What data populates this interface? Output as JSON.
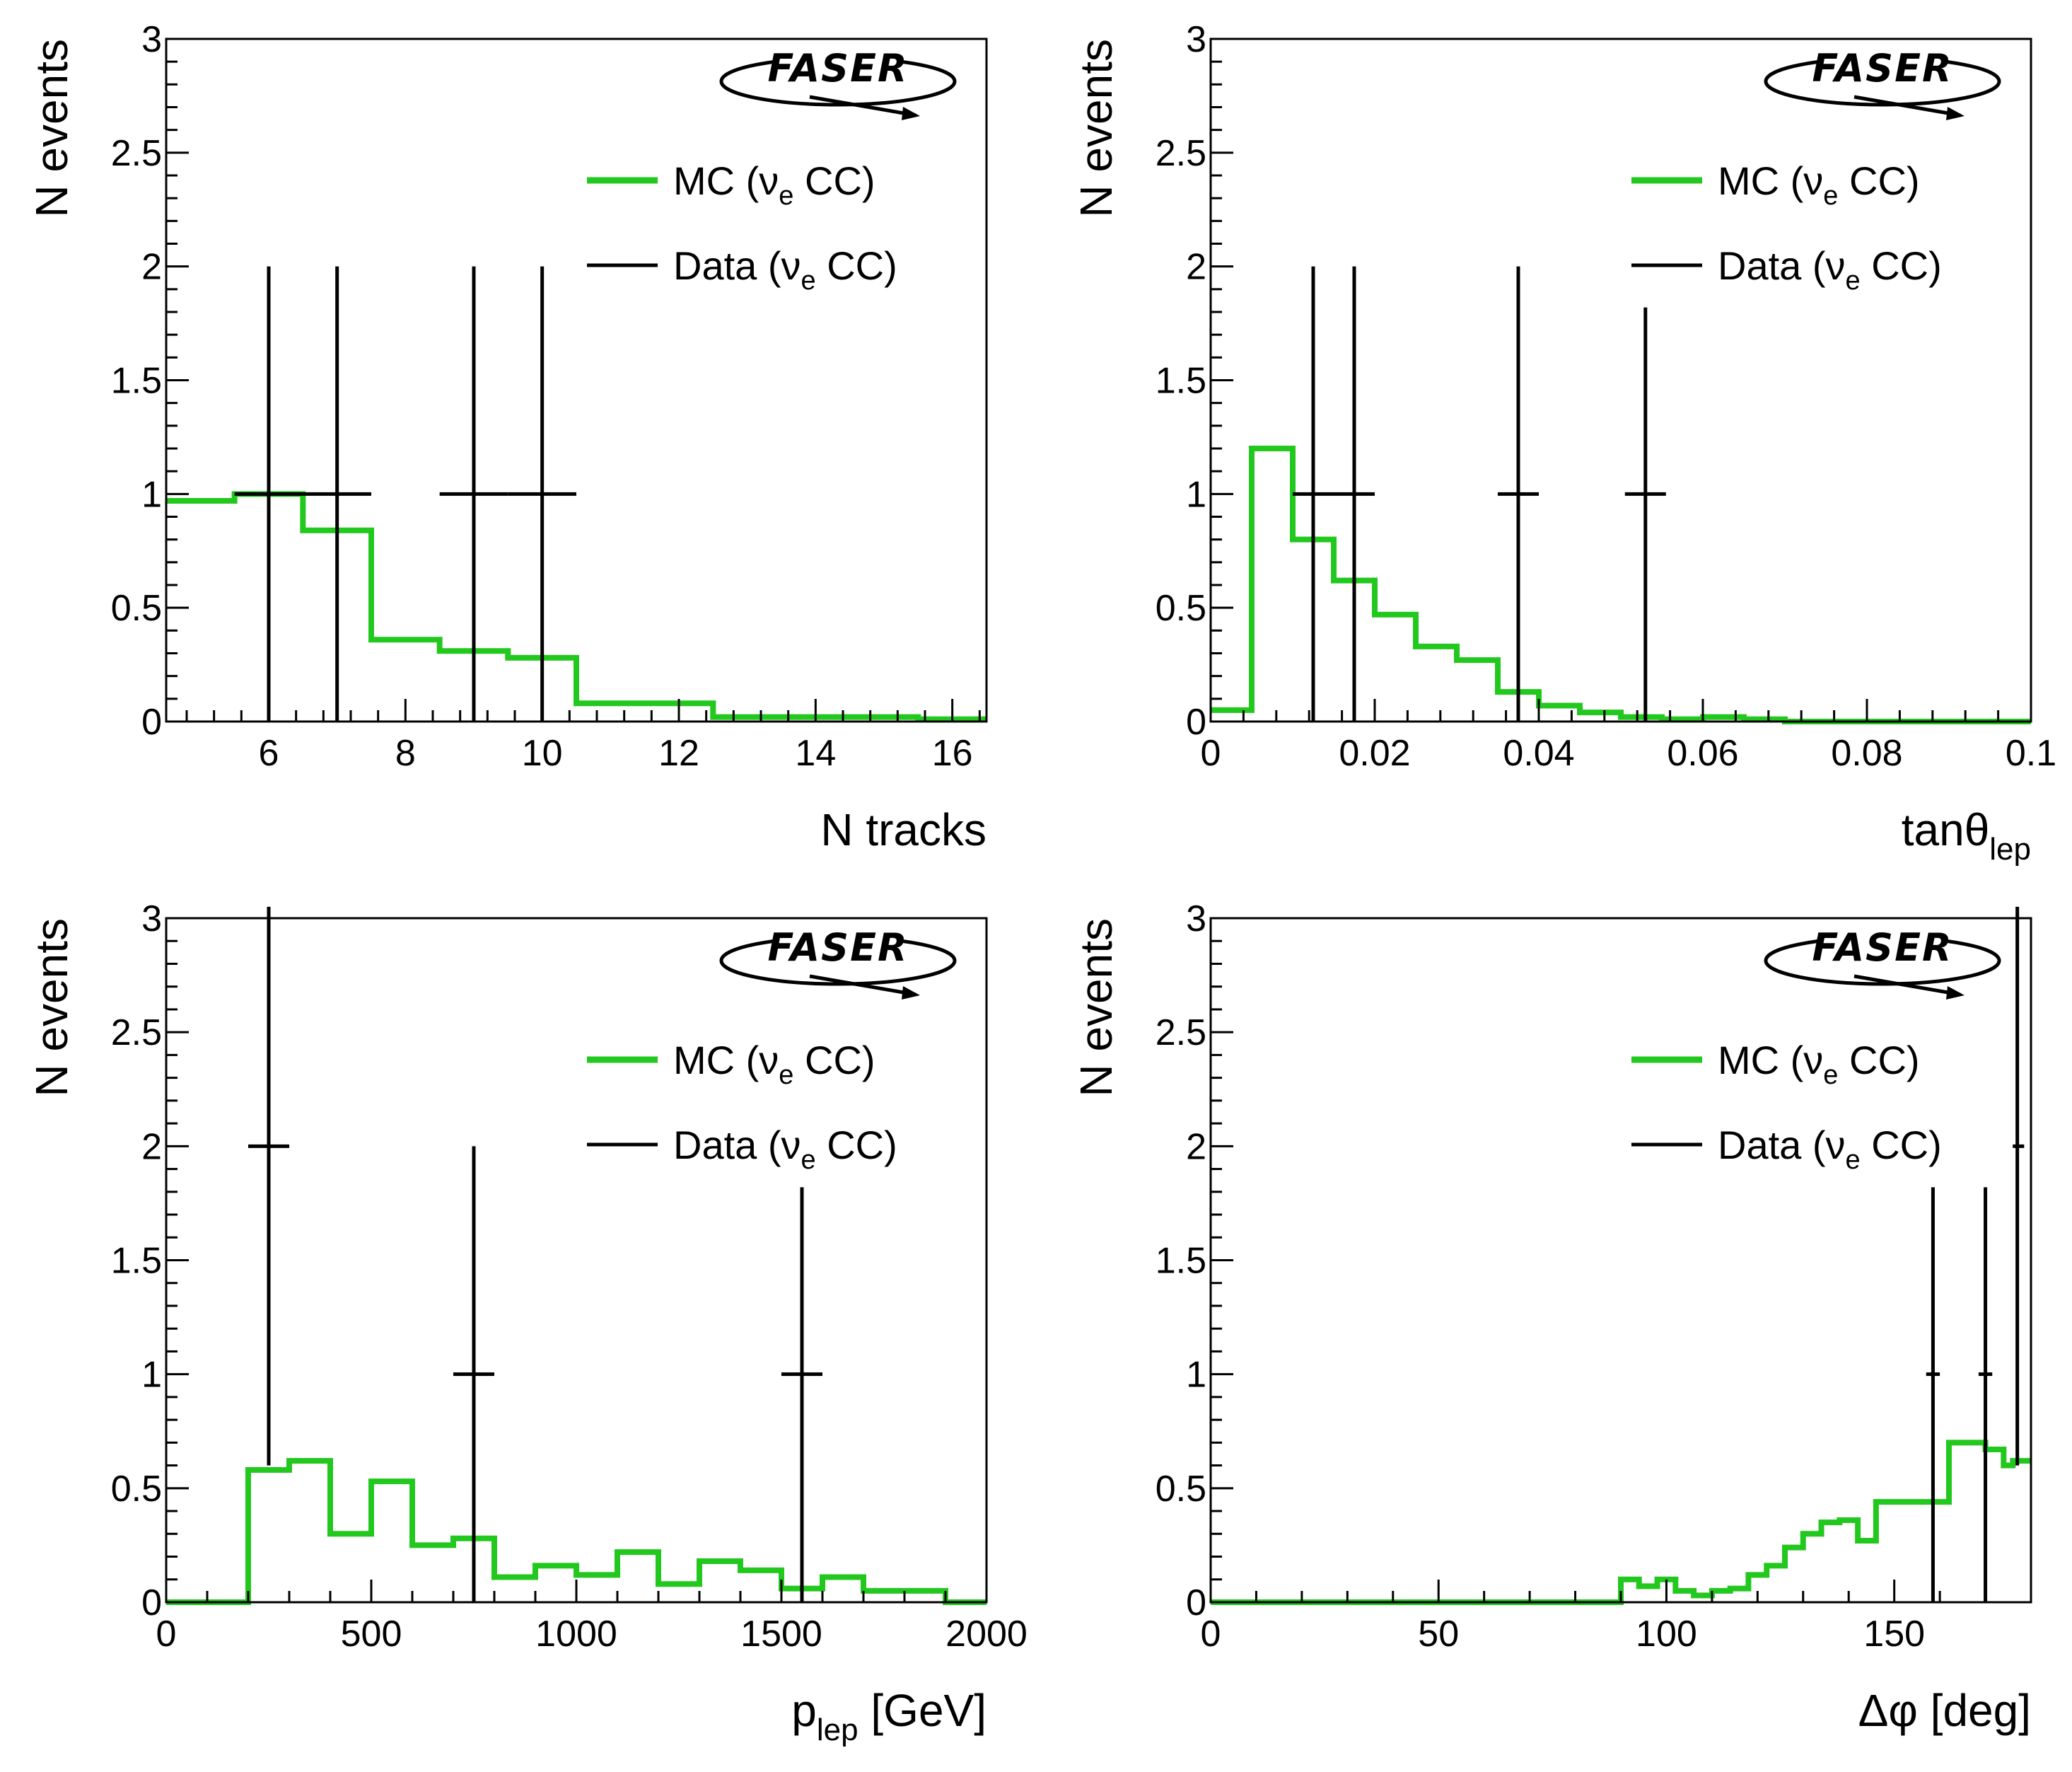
{
  "figure": {
    "logo_text": "FASER"
  },
  "colors": {
    "mc": "#22c81e",
    "data": "#000000",
    "frame": "#000000"
  },
  "chart_data": [
    {
      "type": "histogram",
      "xlabel": "N tracks",
      "xlabel_sub": "",
      "xlabel_suffix": "",
      "ylabel": "N events",
      "xlim": [
        4.5,
        16.5
      ],
      "ylim": [
        0,
        3
      ],
      "xticks": [
        6,
        8,
        10,
        12,
        14,
        16
      ],
      "xtick_labels": [
        "6",
        "8",
        "10",
        "12",
        "14",
        "16"
      ],
      "yticks": [
        0,
        0.5,
        1,
        1.5,
        2,
        2.5,
        3
      ],
      "ytick_labels": [
        "0",
        "0.5",
        "1",
        "1.5",
        "2",
        "2.5",
        "3"
      ],
      "legend": {
        "position": "top-right",
        "mc": "MC (νe CC)",
        "data": "Data (νe CC)"
      },
      "mc": {
        "name": "MC (νe CC)",
        "edges": [
          4.5,
          5.5,
          6.5,
          7.5,
          8.5,
          9.5,
          10.5,
          11.5,
          12.5,
          13.5,
          14.5,
          15.5,
          16.5
        ],
        "values": [
          0.97,
          1.0,
          0.84,
          0.36,
          0.31,
          0.28,
          0.08,
          0.08,
          0.02,
          0.02,
          0.02,
          0.01
        ]
      },
      "data": {
        "name": "Data (νe CC)",
        "points": [
          {
            "x": 6,
            "y": 1,
            "xlo": 5.5,
            "xhi": 6.5,
            "ylo": 0,
            "yhi": 2
          },
          {
            "x": 7,
            "y": 1,
            "xlo": 6.5,
            "xhi": 7.5,
            "ylo": 0,
            "yhi": 2
          },
          {
            "x": 9,
            "y": 1,
            "xlo": 8.5,
            "xhi": 9.5,
            "ylo": 0,
            "yhi": 2
          },
          {
            "x": 10,
            "y": 1,
            "xlo": 9.5,
            "xhi": 10.5,
            "ylo": 0,
            "yhi": 2
          }
        ]
      }
    },
    {
      "type": "histogram",
      "xlabel": "tanθ",
      "xlabel_sub": "lep",
      "xlabel_suffix": "",
      "ylabel": "N events",
      "xlim": [
        0,
        0.1
      ],
      "ylim": [
        0,
        3
      ],
      "xticks": [
        0,
        0.02,
        0.04,
        0.06,
        0.08,
        0.1
      ],
      "xtick_labels": [
        "0",
        "0.02",
        "0.04",
        "0.06",
        "0.08",
        "0.1"
      ],
      "yticks": [
        0,
        0.5,
        1,
        1.5,
        2,
        2.5,
        3
      ],
      "ytick_labels": [
        "0",
        "0.5",
        "1",
        "1.5",
        "2",
        "2.5",
        "3"
      ],
      "legend": {
        "position": "top-right",
        "mc": "MC (νe CC)",
        "data": "Data (νe CC)"
      },
      "mc": {
        "name": "MC (νe CC)",
        "edges": [
          0,
          0.005,
          0.01,
          0.015,
          0.02,
          0.025,
          0.03,
          0.035,
          0.04,
          0.045,
          0.05,
          0.055,
          0.06,
          0.065,
          0.07,
          0.1
        ],
        "values": [
          0.05,
          1.2,
          0.8,
          0.62,
          0.47,
          0.33,
          0.27,
          0.13,
          0.07,
          0.04,
          0.02,
          0.01,
          0.02,
          0.01,
          0.0
        ]
      },
      "data": {
        "name": "Data (νe CC)",
        "points": [
          {
            "x": 0.0125,
            "y": 1,
            "xlo": 0.01,
            "xhi": 0.015,
            "ylo": 0,
            "yhi": 2
          },
          {
            "x": 0.0175,
            "y": 1,
            "xlo": 0.015,
            "xhi": 0.02,
            "ylo": 0,
            "yhi": 2
          },
          {
            "x": 0.0375,
            "y": 1,
            "xlo": 0.035,
            "xhi": 0.04,
            "ylo": 0,
            "yhi": 2
          },
          {
            "x": 0.053,
            "y": 1,
            "xlo": 0.0505,
            "xhi": 0.0555,
            "ylo": 0,
            "yhi": 1.82
          }
        ]
      }
    },
    {
      "type": "histogram",
      "xlabel": "p",
      "xlabel_sub": "lep",
      "xlabel_suffix": " [GeV]",
      "ylabel": "N events",
      "xlim": [
        0,
        2000
      ],
      "ylim": [
        0,
        3
      ],
      "xticks": [
        0,
        500,
        1000,
        1500,
        2000
      ],
      "xtick_labels": [
        "0",
        "500",
        "1000",
        "1500",
        "2000"
      ],
      "yticks": [
        0,
        0.5,
        1,
        1.5,
        2,
        2.5,
        3
      ],
      "ytick_labels": [
        "0",
        "0.5",
        "1",
        "1.5",
        "2",
        "2.5",
        "3"
      ],
      "legend": {
        "position": "top-right",
        "mc": "MC (νe CC)",
        "data": "Data (νe CC)"
      },
      "mc": {
        "name": "MC (νe CC)",
        "edges": [
          0,
          100,
          200,
          300,
          400,
          500,
          600,
          700,
          800,
          900,
          1000,
          1100,
          1200,
          1300,
          1400,
          1500,
          1600,
          1700,
          1800,
          1900,
          2000
        ],
        "values": [
          0.0,
          0.0,
          0.58,
          0.62,
          0.3,
          0.53,
          0.25,
          0.28,
          0.11,
          0.16,
          0.12,
          0.22,
          0.08,
          0.18,
          0.14,
          0.06,
          0.11,
          0.05,
          0.05,
          0.0
        ]
      },
      "data": {
        "name": "Data (νe CC)",
        "points": [
          {
            "x": 250,
            "y": 2,
            "xlo": 200,
            "xhi": 300,
            "ylo": 0.6,
            "yhi": 3.05
          },
          {
            "x": 750,
            "y": 1,
            "xlo": 700,
            "xhi": 800,
            "ylo": 0,
            "yhi": 2
          },
          {
            "x": 1550,
            "y": 1,
            "xlo": 1500,
            "xhi": 1600,
            "ylo": 0,
            "yhi": 1.82
          }
        ]
      }
    },
    {
      "type": "histogram",
      "xlabel": "Δφ",
      "xlabel_sub": "",
      "xlabel_suffix": " [deg]",
      "ylabel": "N events",
      "xlim": [
        0,
        180
      ],
      "ylim": [
        0,
        3
      ],
      "xticks": [
        0,
        50,
        100,
        150
      ],
      "xtick_labels": [
        "0",
        "50",
        "100",
        "150"
      ],
      "yticks": [
        0,
        0.5,
        1,
        1.5,
        2,
        2.5,
        3
      ],
      "ytick_labels": [
        "0",
        "0.5",
        "1",
        "1.5",
        "2",
        "2.5",
        "3"
      ],
      "legend": {
        "position": "top-right",
        "mc": "MC (νe CC)",
        "data": "Data (νe CC)"
      },
      "mc": {
        "name": "MC (νe CC)",
        "edges": [
          0,
          90,
          94,
          98,
          102,
          106,
          110,
          114,
          118,
          122,
          126,
          130,
          134,
          138,
          142,
          146,
          150,
          154,
          158,
          162,
          166,
          170,
          174,
          176,
          178,
          180
        ],
        "values": [
          0.0,
          0.1,
          0.07,
          0.1,
          0.05,
          0.03,
          0.05,
          0.06,
          0.12,
          0.16,
          0.24,
          0.3,
          0.35,
          0.36,
          0.27,
          0.44,
          0.44,
          0.44,
          0.44,
          0.7,
          0.7,
          0.67,
          0.6,
          0.62,
          0.62
        ]
      },
      "data": {
        "name": "Data (νe CC)",
        "points": [
          {
            "x": 158.5,
            "y": 1,
            "xlo": 157,
            "xhi": 160,
            "ylo": 0,
            "yhi": 1.82
          },
          {
            "x": 170,
            "y": 1,
            "xlo": 168.5,
            "xhi": 171.5,
            "ylo": 0,
            "yhi": 1.82
          },
          {
            "x": 177,
            "y": 2,
            "xlo": 176,
            "xhi": 178.5,
            "ylo": 0.6,
            "yhi": 3.05
          }
        ]
      }
    }
  ]
}
